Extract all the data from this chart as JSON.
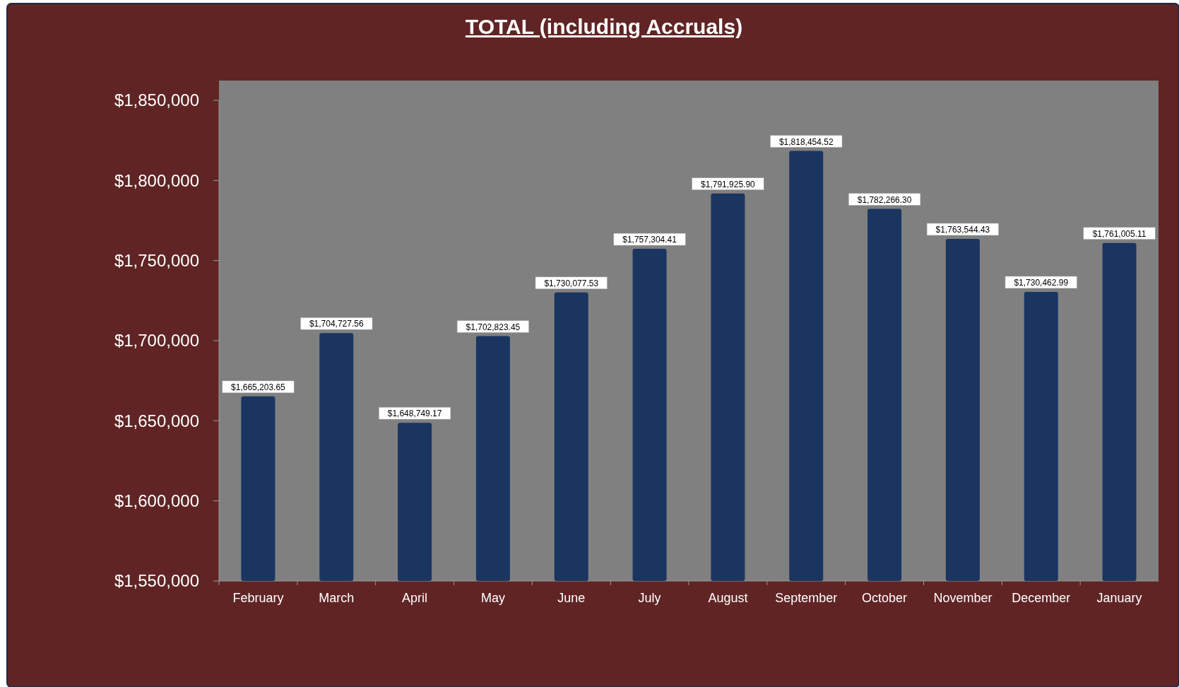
{
  "chart_data": {
    "type": "bar",
    "title": "TOTAL (including Accruals)",
    "categories": [
      "February",
      "March",
      "April",
      "May",
      "June",
      "July",
      "August",
      "September",
      "October",
      "November",
      "December",
      "January"
    ],
    "values": [
      1665203.65,
      1704727.56,
      1648749.17,
      1702823.45,
      1730077.53,
      1757304.41,
      1791925.9,
      1818454.52,
      1782266.3,
      1763544.43,
      1730462.99,
      1761005.11
    ],
    "value_labels": [
      "$1,665,203.65",
      "$1,704,727.56",
      "$1,648,749.17",
      "$1,702,823.45",
      "$1,730,077.53",
      "$1,757,304.41",
      "$1,791,925.90",
      "$1,818,454.52",
      "$1,782,266.30",
      "$1,763,544.43",
      "$1,730,462.99",
      "$1,761,005.11"
    ],
    "color": "#1a3560",
    "ylim": [
      1550000,
      1850000
    ],
    "yticks": [
      {
        "value": 1550000,
        "label": "$1,550,000"
      },
      {
        "value": 1600000,
        "label": "$1,600,000"
      },
      {
        "value": 1650000,
        "label": "$1,650,000"
      },
      {
        "value": 1700000,
        "label": "$1,700,000"
      },
      {
        "value": 1750000,
        "label": "$1,750,000"
      },
      {
        "value": 1800000,
        "label": "$1,800,000"
      },
      {
        "value": 1850000,
        "label": "$1,850,000"
      }
    ],
    "grid": false
  }
}
